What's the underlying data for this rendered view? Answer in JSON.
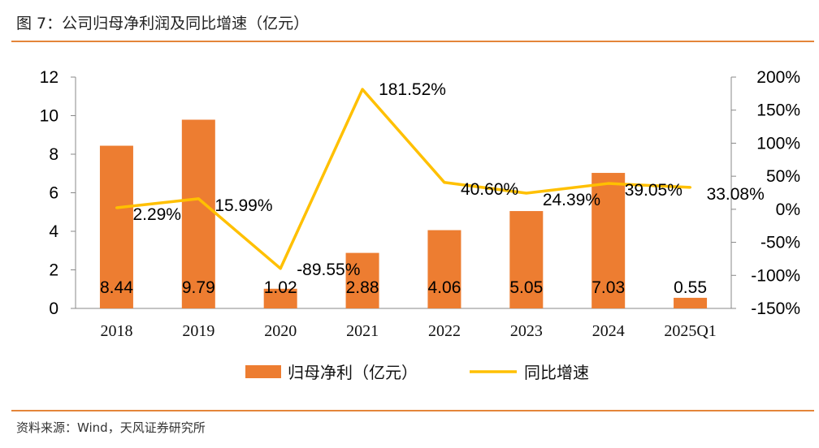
{
  "header": {
    "title": "图 7：公司归母净利润及同比增速（亿元）"
  },
  "footer": {
    "source": "资料来源：Wind，天风证券研究所"
  },
  "chart_data": {
    "type": "bar",
    "categories": [
      "2018",
      "2019",
      "2020",
      "2021",
      "2022",
      "2023",
      "2024",
      "2025Q1"
    ],
    "series": [
      {
        "name": "归母净利（亿元）",
        "type": "bar",
        "axis": "left",
        "color": "#ed7d31",
        "values": [
          8.44,
          9.79,
          1.02,
          2.88,
          4.06,
          5.05,
          7.03,
          0.55
        ],
        "labels": [
          "8.44",
          "9.79",
          "1.02",
          "2.88",
          "4.06",
          "5.05",
          "7.03",
          "0.55"
        ]
      },
      {
        "name": "同比增速",
        "type": "line",
        "axis": "right",
        "color": "#ffc000",
        "values": [
          2.29,
          15.99,
          -89.55,
          181.52,
          40.6,
          24.39,
          39.05,
          33.08
        ],
        "labels": [
          "2.29%",
          "15.99%",
          "-89.55%",
          "181.52%",
          "40.60%",
          "24.39%",
          "39.05%",
          "33.08%"
        ]
      }
    ],
    "y_left": {
      "ylim": [
        0,
        12
      ],
      "ticks": [
        "0",
        "2",
        "4",
        "6",
        "8",
        "10",
        "12"
      ]
    },
    "y_right": {
      "ylim": [
        -150,
        200
      ],
      "ticks": [
        "-150%",
        "-100%",
        "-50%",
        "0%",
        "50%",
        "100%",
        "150%",
        "200%"
      ]
    },
    "legend": {
      "position": "bottom"
    },
    "grid": false
  }
}
